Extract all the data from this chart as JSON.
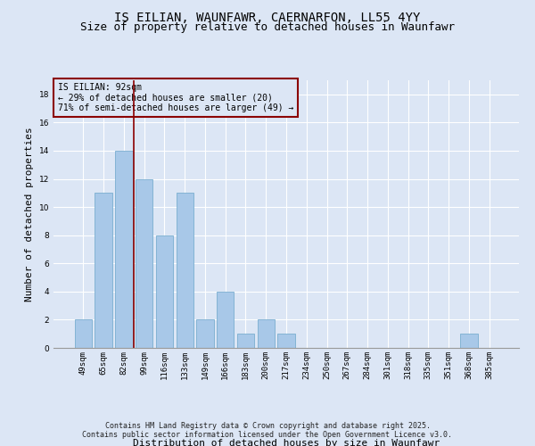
{
  "title": "IS EILIAN, WAUNFAWR, CAERNARFON, LL55 4YY",
  "subtitle": "Size of property relative to detached houses in Waunfawr",
  "xlabel": "Distribution of detached houses by size in Waunfawr",
  "ylabel": "Number of detached properties",
  "categories": [
    "49sqm",
    "65sqm",
    "82sqm",
    "99sqm",
    "116sqm",
    "133sqm",
    "149sqm",
    "166sqm",
    "183sqm",
    "200sqm",
    "217sqm",
    "234sqm",
    "250sqm",
    "267sqm",
    "284sqm",
    "301sqm",
    "318sqm",
    "335sqm",
    "351sqm",
    "368sqm",
    "385sqm"
  ],
  "values": [
    2,
    11,
    14,
    12,
    8,
    11,
    2,
    4,
    1,
    2,
    1,
    0,
    0,
    0,
    0,
    0,
    0,
    0,
    0,
    1,
    0
  ],
  "bar_color": "#a8c8e8",
  "bar_edge_color": "#7aaed0",
  "background_color": "#dce6f5",
  "grid_color": "#ffffff",
  "vline_x": 2.5,
  "vline_color": "#8b0000",
  "annotation_line1": "IS EILIAN: 92sqm",
  "annotation_line2": "← 29% of detached houses are smaller (20)",
  "annotation_line3": "71% of semi-detached houses are larger (49) →",
  "annotation_box_color": "#8b0000",
  "ylim": [
    0,
    19
  ],
  "yticks": [
    0,
    2,
    4,
    6,
    8,
    10,
    12,
    14,
    16,
    18
  ],
  "footer_line1": "Contains HM Land Registry data © Crown copyright and database right 2025.",
  "footer_line2": "Contains public sector information licensed under the Open Government Licence v3.0.",
  "title_fontsize": 10,
  "subtitle_fontsize": 9,
  "xlabel_fontsize": 8,
  "ylabel_fontsize": 8,
  "tick_fontsize": 6.5,
  "footer_fontsize": 6,
  "annotation_fontsize": 7
}
